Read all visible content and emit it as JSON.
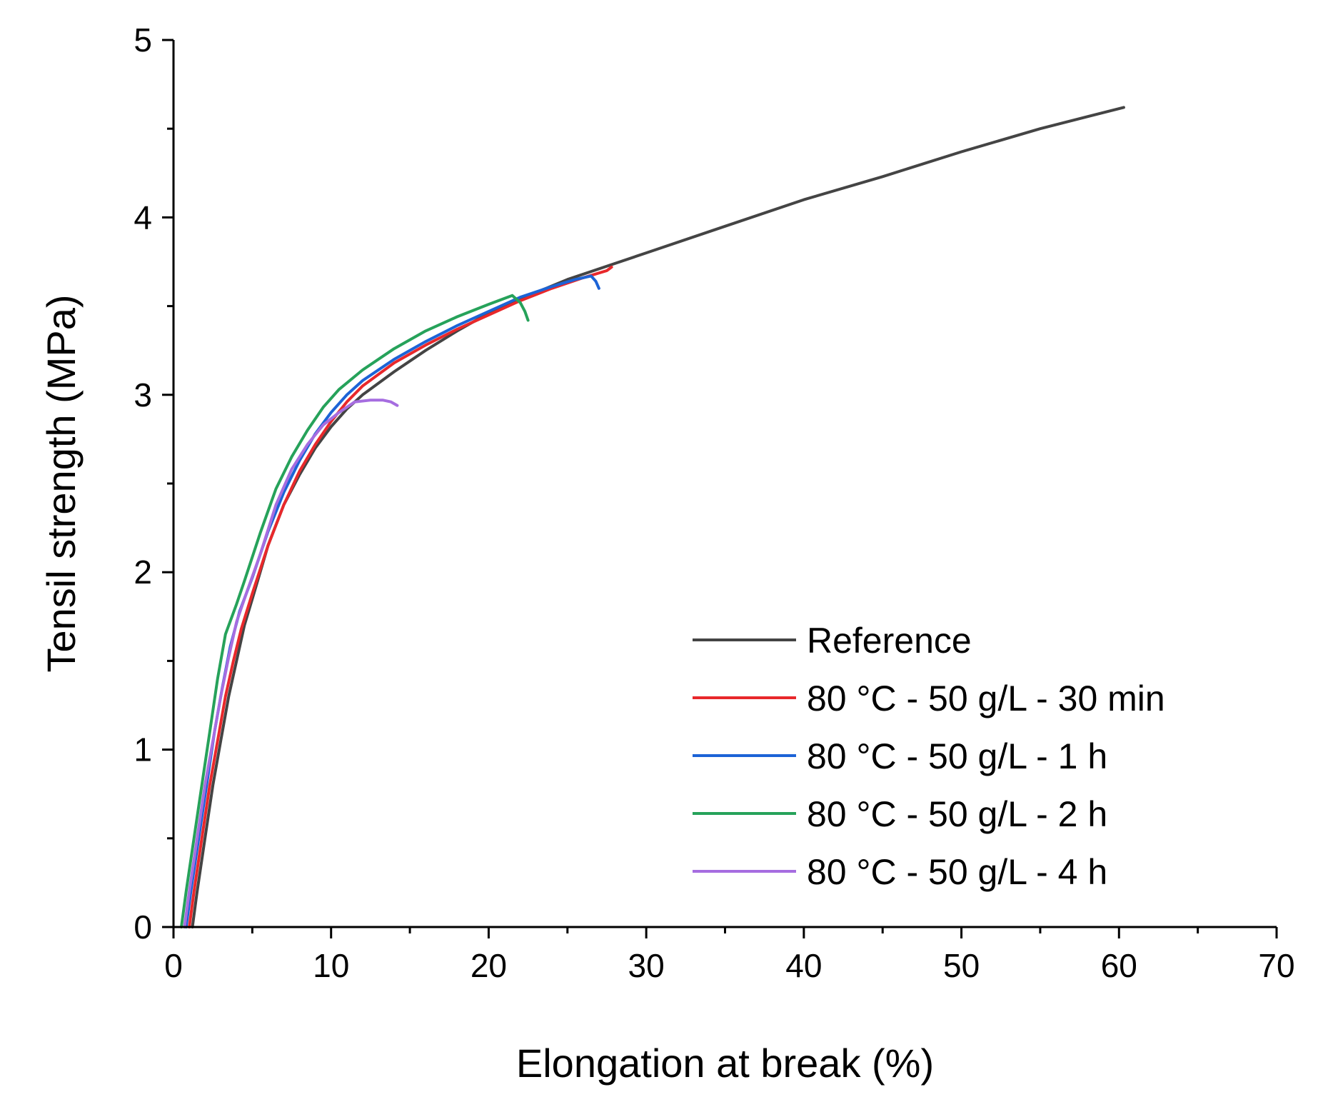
{
  "chart_data": {
    "type": "line",
    "title": "",
    "xlabel": "Elongation at break (%)",
    "ylabel": "Tensil strength (MPa)",
    "xlim": [
      0,
      70
    ],
    "ylim": [
      0,
      5
    ],
    "xticks": [
      0,
      10,
      20,
      30,
      40,
      50,
      60,
      70
    ],
    "yticks": [
      0,
      1,
      2,
      3,
      4,
      5
    ],
    "xtick_labels": [
      "0",
      "10",
      "20",
      "30",
      "40",
      "50",
      "60",
      "70"
    ],
    "ytick_labels": [
      "0",
      "1",
      "2",
      "3",
      "4",
      "5"
    ],
    "x_minor_step": 5,
    "y_minor_step": 0.5,
    "grid": false,
    "legend_position": "bottom-right",
    "series": [
      {
        "name": "Reference",
        "color": "#444444",
        "points": [
          [
            1.2,
            0
          ],
          [
            1.5,
            0.2
          ],
          [
            2,
            0.5
          ],
          [
            2.5,
            0.8
          ],
          [
            3,
            1.05
          ],
          [
            3.5,
            1.3
          ],
          [
            4,
            1.5
          ],
          [
            4.5,
            1.7
          ],
          [
            5,
            1.85
          ],
          [
            6,
            2.15
          ],
          [
            7,
            2.38
          ],
          [
            8,
            2.55
          ],
          [
            9,
            2.7
          ],
          [
            10,
            2.82
          ],
          [
            11,
            2.92
          ],
          [
            12,
            3.0
          ],
          [
            14,
            3.13
          ],
          [
            16,
            3.25
          ],
          [
            18,
            3.36
          ],
          [
            20,
            3.46
          ],
          [
            22,
            3.54
          ],
          [
            25,
            3.65
          ],
          [
            28,
            3.74
          ],
          [
            30,
            3.8
          ],
          [
            35,
            3.95
          ],
          [
            40,
            4.1
          ],
          [
            45,
            4.23
          ],
          [
            50,
            4.37
          ],
          [
            55,
            4.5
          ],
          [
            60.3,
            4.62
          ]
        ]
      },
      {
        "name": "80 °C - 50 g/L - 30 min",
        "color": "#e8282b",
        "points": [
          [
            1,
            0
          ],
          [
            1.3,
            0.2
          ],
          [
            1.8,
            0.5
          ],
          [
            2.3,
            0.8
          ],
          [
            2.8,
            1.05
          ],
          [
            3.3,
            1.3
          ],
          [
            3.8,
            1.5
          ],
          [
            4.3,
            1.68
          ],
          [
            5,
            1.88
          ],
          [
            6,
            2.15
          ],
          [
            7,
            2.38
          ],
          [
            8,
            2.57
          ],
          [
            9,
            2.72
          ],
          [
            10,
            2.85
          ],
          [
            11,
            2.96
          ],
          [
            12,
            3.05
          ],
          [
            14,
            3.18
          ],
          [
            16,
            3.28
          ],
          [
            18,
            3.37
          ],
          [
            20,
            3.45
          ],
          [
            22,
            3.53
          ],
          [
            24,
            3.6
          ],
          [
            26,
            3.66
          ],
          [
            27.5,
            3.7
          ],
          [
            27.8,
            3.72
          ]
        ]
      },
      {
        "name": "80 °C - 50 g/L - 1 h",
        "color": "#1c63d6",
        "points": [
          [
            0.8,
            0
          ],
          [
            1.1,
            0.2
          ],
          [
            1.6,
            0.5
          ],
          [
            2.1,
            0.8
          ],
          [
            2.6,
            1.1
          ],
          [
            3.1,
            1.35
          ],
          [
            3.6,
            1.58
          ],
          [
            4.2,
            1.78
          ],
          [
            5,
            1.97
          ],
          [
            6,
            2.23
          ],
          [
            7,
            2.45
          ],
          [
            8,
            2.63
          ],
          [
            9,
            2.78
          ],
          [
            10,
            2.9
          ],
          [
            11,
            3.0
          ],
          [
            12,
            3.08
          ],
          [
            14,
            3.2
          ],
          [
            16,
            3.3
          ],
          [
            18,
            3.39
          ],
          [
            20,
            3.47
          ],
          [
            22,
            3.55
          ],
          [
            24,
            3.61
          ],
          [
            25.5,
            3.65
          ],
          [
            26.5,
            3.67
          ],
          [
            26.8,
            3.64
          ],
          [
            27,
            3.6
          ]
        ]
      },
      {
        "name": "80 °C - 50 g/L - 2 h",
        "color": "#26a25a",
        "points": [
          [
            0.5,
            0
          ],
          [
            0.8,
            0.2
          ],
          [
            1.3,
            0.5
          ],
          [
            1.8,
            0.8
          ],
          [
            2.3,
            1.1
          ],
          [
            2.8,
            1.4
          ],
          [
            3.3,
            1.65
          ],
          [
            4,
            1.82
          ],
          [
            4.5,
            1.95
          ],
          [
            5.5,
            2.22
          ],
          [
            6.5,
            2.47
          ],
          [
            7.5,
            2.65
          ],
          [
            8.5,
            2.8
          ],
          [
            9.5,
            2.93
          ],
          [
            10.5,
            3.03
          ],
          [
            12,
            3.14
          ],
          [
            14,
            3.26
          ],
          [
            16,
            3.36
          ],
          [
            18,
            3.44
          ],
          [
            20,
            3.51
          ],
          [
            21.5,
            3.56
          ],
          [
            22,
            3.52
          ],
          [
            22.3,
            3.47
          ],
          [
            22.5,
            3.42
          ]
        ]
      },
      {
        "name": "80 °C - 50 g/L - 4 h",
        "color": "#a66de0",
        "points": [
          [
            0.7,
            0
          ],
          [
            1,
            0.2
          ],
          [
            1.5,
            0.5
          ],
          [
            2,
            0.8
          ],
          [
            2.5,
            1.05
          ],
          [
            3,
            1.3
          ],
          [
            3.5,
            1.52
          ],
          [
            4,
            1.72
          ],
          [
            4.7,
            1.9
          ],
          [
            5.5,
            2.1
          ],
          [
            6.5,
            2.38
          ],
          [
            7.5,
            2.58
          ],
          [
            8.5,
            2.72
          ],
          [
            9.5,
            2.83
          ],
          [
            10.5,
            2.9
          ],
          [
            11.5,
            2.96
          ],
          [
            12.5,
            2.97
          ],
          [
            13.3,
            2.97
          ],
          [
            13.8,
            2.96
          ],
          [
            14.2,
            2.94
          ]
        ]
      }
    ]
  }
}
